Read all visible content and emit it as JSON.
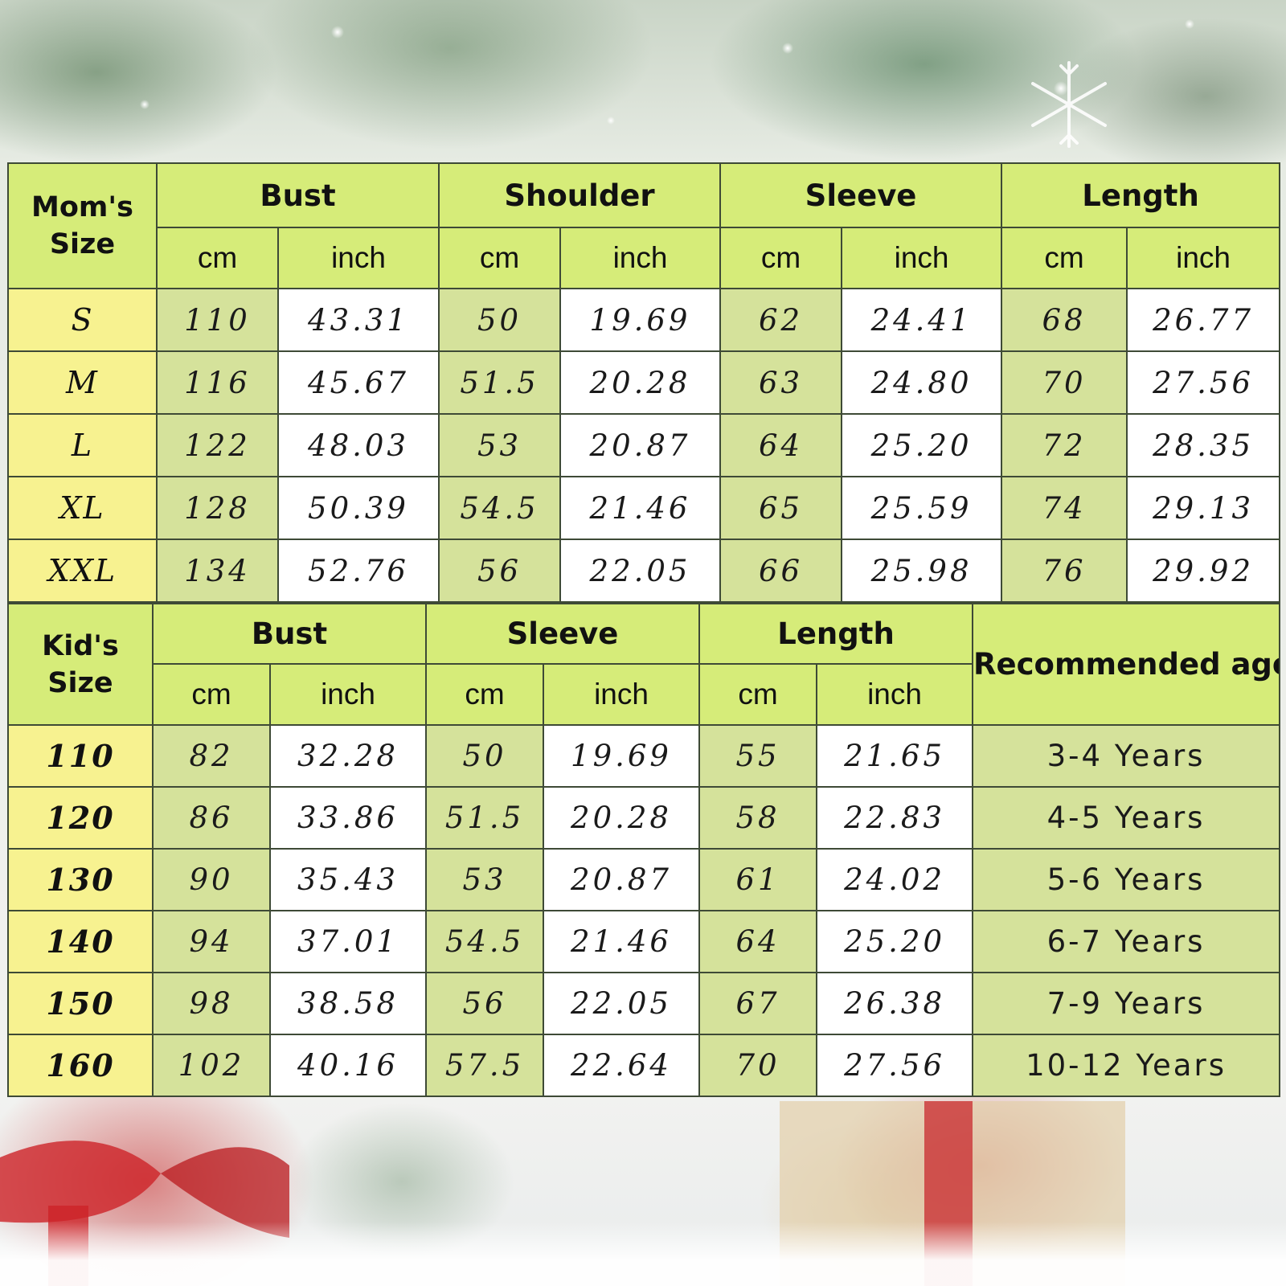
{
  "mom_table": {
    "size_header": "Mom's Size",
    "groups": [
      "Bust",
      "Shoulder",
      "Sleeve",
      "Length"
    ],
    "unit_cm": "cm",
    "unit_inch": "inch",
    "rows": [
      {
        "size": "S",
        "values": [
          "110",
          "43.31",
          "50",
          "19.69",
          "62",
          "24.41",
          "68",
          "26.77"
        ]
      },
      {
        "size": "M",
        "values": [
          "116",
          "45.67",
          "51.5",
          "20.28",
          "63",
          "24.80",
          "70",
          "27.56"
        ]
      },
      {
        "size": "L",
        "values": [
          "122",
          "48.03",
          "53",
          "20.87",
          "64",
          "25.20",
          "72",
          "28.35"
        ]
      },
      {
        "size": "XL",
        "values": [
          "128",
          "50.39",
          "54.5",
          "21.46",
          "65",
          "25.59",
          "74",
          "29.13"
        ]
      },
      {
        "size": "XXL",
        "values": [
          "134",
          "52.76",
          "56",
          "22.05",
          "66",
          "25.98",
          "76",
          "29.92"
        ]
      }
    ]
  },
  "kid_table": {
    "size_header": "Kid's Size",
    "groups": [
      "Bust",
      "Sleeve",
      "Length"
    ],
    "age_header": "Recommended age",
    "unit_cm": "cm",
    "unit_inch": "inch",
    "rows": [
      {
        "size": "110",
        "values": [
          "82",
          "32.28",
          "50",
          "19.69",
          "55",
          "21.65"
        ],
        "age": "3-4 Years"
      },
      {
        "size": "120",
        "values": [
          "86",
          "33.86",
          "51.5",
          "20.28",
          "58",
          "22.83"
        ],
        "age": "4-5 Years"
      },
      {
        "size": "130",
        "values": [
          "90",
          "35.43",
          "53",
          "20.87",
          "61",
          "24.02"
        ],
        "age": "5-6 Years"
      },
      {
        "size": "140",
        "values": [
          "94",
          "37.01",
          "54.5",
          "21.46",
          "64",
          "25.20"
        ],
        "age": "6-7 Years"
      },
      {
        "size": "150",
        "values": [
          "98",
          "38.58",
          "56",
          "22.05",
          "67",
          "26.38"
        ],
        "age": "7-9 Years"
      },
      {
        "size": "160",
        "values": [
          "102",
          "40.16",
          "57.5",
          "22.64",
          "70",
          "27.56"
        ],
        "age": "10-12 Years"
      }
    ]
  },
  "background": {
    "theme_icons": [
      "pine-branch-icon",
      "snowflake-icon",
      "gift-box-icon",
      "red-ribbon-icon"
    ]
  },
  "colors": {
    "header_green": "#d6ec79",
    "size_yellow": "#f7f290",
    "cm_green": "#d5e29b",
    "inch_white": "#ffffff",
    "border": "#3e4a36"
  }
}
